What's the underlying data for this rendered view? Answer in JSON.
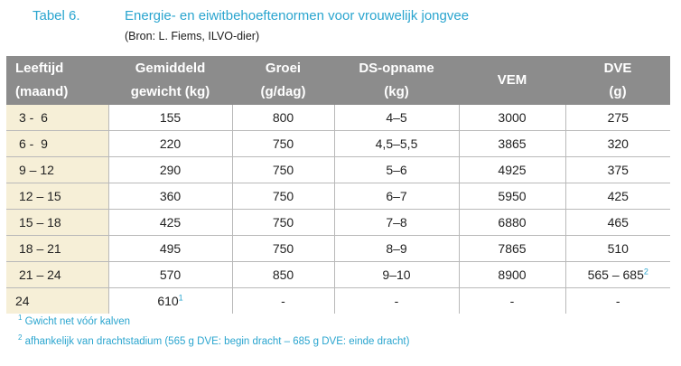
{
  "title": {
    "number": "Tabel 6.",
    "text": "Energie- en eiwitbehoeftenormen voor vrouwelijk jongvee"
  },
  "source": "(Bron: L. Fiems, ILVO-dier)",
  "table": {
    "headers": [
      {
        "line1": "Leeftijd",
        "line2": "(maand)"
      },
      {
        "line1": "Gemiddeld",
        "line2": "gewicht (kg)"
      },
      {
        "line1": "Groei",
        "line2": "(g/dag)"
      },
      {
        "line1": "DS-opname",
        "line2": "(kg)"
      },
      {
        "line1": "VEM",
        "line2": ""
      },
      {
        "line1": "DVE",
        "line2": "(g)"
      }
    ],
    "rows": [
      [
        "3 -  6",
        "155",
        "800",
        "4–5",
        "3000",
        "275"
      ],
      [
        "6 -  9",
        "220",
        "750",
        "4,5–5,5",
        "3865",
        "320"
      ],
      [
        "9 – 12",
        "290",
        "750",
        "5–6",
        "4925",
        "375"
      ],
      [
        "12 – 15",
        "360",
        "750",
        "6–7",
        "5950",
        "425"
      ],
      [
        "15 – 18",
        "425",
        "750",
        "7–8",
        "6880",
        "465"
      ],
      [
        "18 – 21",
        "495",
        "750",
        "8–9",
        "7865",
        "510"
      ],
      [
        "21 – 24",
        "570",
        "850",
        "9–10",
        "8900",
        "565 – 685"
      ],
      [
        "24",
        "610",
        "-",
        "-",
        "-",
        "-"
      ]
    ],
    "sup_weight_24": "1",
    "sup_dve_21_24": "2"
  },
  "footnotes": [
    {
      "mark": "1",
      "text": " Gwicht net vóór kalven"
    },
    {
      "mark": "2",
      "text": " afhankelijk van drachtstadium (565 g DVE: begin dracht – 685 g DVE: einde dracht)"
    }
  ],
  "colors": {
    "accent": "#2aa5cf",
    "header_bg": "#8c8c8c",
    "age_col_bg": "#f6efd7"
  }
}
